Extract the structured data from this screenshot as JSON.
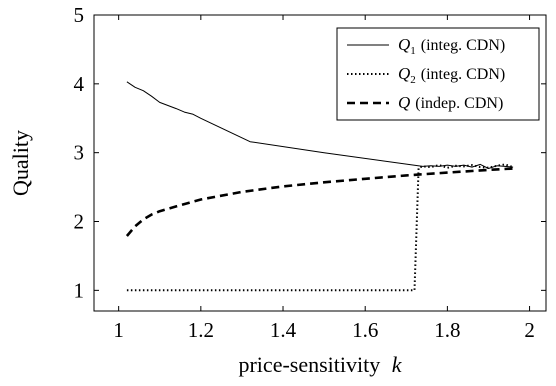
{
  "chart_data": {
    "type": "line",
    "xlabel": "price-sensitivity",
    "xlabel_var": "k",
    "ylabel": "Quality",
    "xlim": [
      0.94,
      2.04
    ],
    "ylim": [
      0.7,
      5
    ],
    "xticks": [
      1,
      1.2,
      1.4,
      1.6,
      1.8,
      2
    ],
    "xtick_labels": [
      "1",
      "1.2",
      "1.4",
      "1.6",
      "1.8",
      "2"
    ],
    "yticks": [
      1,
      2,
      3,
      4,
      5
    ],
    "ytick_labels": [
      "1",
      "2",
      "3",
      "4",
      "5"
    ],
    "grid": false,
    "legend_position": "top-right",
    "series": [
      {
        "name_var": "Q",
        "name_sub": "1",
        "name_suffix": "(integ. CDN)",
        "style": "solid",
        "x": [
          1.02,
          1.04,
          1.06,
          1.08,
          1.1,
          1.14,
          1.16,
          1.18,
          1.2,
          1.32,
          1.5,
          1.74,
          1.76,
          1.78,
          1.8,
          1.82,
          1.84,
          1.86,
          1.88,
          1.9,
          1.92,
          1.94,
          1.96
        ],
        "y": [
          4.03,
          3.95,
          3.9,
          3.82,
          3.73,
          3.64,
          3.59,
          3.56,
          3.5,
          3.16,
          3.0,
          2.8,
          2.81,
          2.8,
          2.82,
          2.8,
          2.82,
          2.79,
          2.83,
          2.77,
          2.81,
          2.8,
          2.79
        ]
      },
      {
        "name_var": "Q",
        "name_sub": "2",
        "name_suffix": "(integ. CDN)",
        "style": "dotted",
        "x": [
          1.02,
          1.3,
          1.5,
          1.72,
          1.73,
          1.74,
          1.76,
          1.78,
          1.8,
          1.82,
          1.84,
          1.86,
          1.88,
          1.9,
          1.92,
          1.94,
          1.96
        ],
        "y": [
          1.0,
          1.0,
          1.0,
          1.0,
          2.78,
          2.8,
          2.79,
          2.82,
          2.78,
          2.81,
          2.8,
          2.82,
          2.79,
          2.78,
          2.81,
          2.83,
          2.79
        ]
      },
      {
        "name_var": "Q",
        "name_sub": "",
        "name_suffix": "(indep. CDN)",
        "style": "dashed",
        "x": [
          1.02,
          1.04,
          1.06,
          1.08,
          1.1,
          1.14,
          1.2,
          1.3,
          1.4,
          1.5,
          1.6,
          1.7,
          1.8,
          1.9,
          1.96
        ],
        "y": [
          1.79,
          1.93,
          2.03,
          2.1,
          2.15,
          2.22,
          2.32,
          2.43,
          2.51,
          2.57,
          2.62,
          2.67,
          2.71,
          2.75,
          2.77
        ]
      }
    ]
  }
}
